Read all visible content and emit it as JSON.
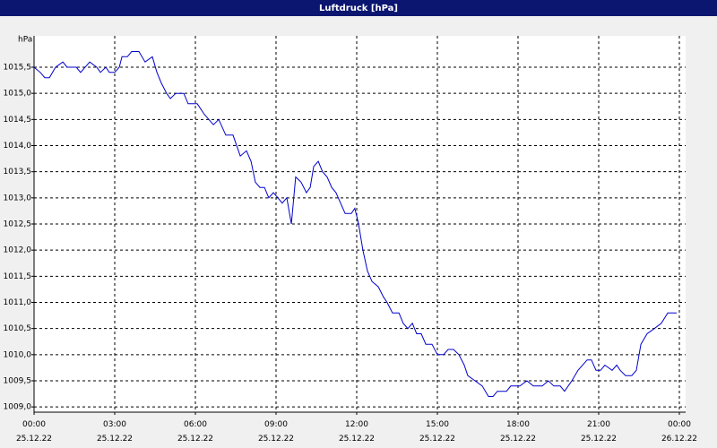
{
  "chart_data": {
    "type": "line",
    "title": "Luftdruck [hPa]",
    "y_label": "hPa",
    "xlim": [
      0,
      24
    ],
    "ylim": [
      1008.9,
      1016.1
    ],
    "grid": true,
    "xticks": [
      {
        "value": 0,
        "label": "00:00 25.12.22"
      },
      {
        "value": 3,
        "label": "03:00 25.12.22"
      },
      {
        "value": 6,
        "label": "06:00 25.12.22"
      },
      {
        "value": 9,
        "label": "09:00 25.12.22"
      },
      {
        "value": 12,
        "label": "12:00 25.12.22"
      },
      {
        "value": 15,
        "label": "15:00 25.12.22"
      },
      {
        "value": 18,
        "label": "18:00 25.12.22"
      },
      {
        "value": 21,
        "label": "21:00 25.12.22"
      },
      {
        "value": 24,
        "label": "00:00 26.12.22"
      }
    ],
    "yticks": [
      {
        "value": 1009.0,
        "label": "1009,0"
      },
      {
        "value": 1009.5,
        "label": "1009,5"
      },
      {
        "value": 1010.0,
        "label": "1010,0"
      },
      {
        "value": 1010.5,
        "label": "1010,5"
      },
      {
        "value": 1011.0,
        "label": "1011,0"
      },
      {
        "value": 1011.5,
        "label": "1011,5"
      },
      {
        "value": 1012.0,
        "label": "1012,0"
      },
      {
        "value": 1012.5,
        "label": "1012,5"
      },
      {
        "value": 1013.0,
        "label": "1013,0"
      },
      {
        "value": 1013.5,
        "label": "1013,5"
      },
      {
        "value": 1014.0,
        "label": "1014,0"
      },
      {
        "value": 1014.5,
        "label": "1014,5"
      },
      {
        "value": 1015.0,
        "label": "1015,0"
      },
      {
        "value": 1015.5,
        "label": "1015,5"
      }
    ],
    "series": [
      {
        "name": "Luftdruck",
        "color": "#0000cc",
        "x": [
          0,
          0.23,
          0.4,
          0.57,
          0.8,
          1.07,
          1.23,
          1.57,
          1.73,
          2.07,
          2.33,
          2.47,
          2.67,
          2.8,
          3,
          3.17,
          3.27,
          3.47,
          3.63,
          3.9,
          4.13,
          4.4,
          4.57,
          4.73,
          4.93,
          5.07,
          5.27,
          5.57,
          5.73,
          6.07,
          6.33,
          6.67,
          6.87,
          7.13,
          7.4,
          7.67,
          7.9,
          8.07,
          8.23,
          8.4,
          8.57,
          8.73,
          8.9,
          9.07,
          9.23,
          9.4,
          9.57,
          9.73,
          9.93,
          10.13,
          10.27,
          10.4,
          10.57,
          10.73,
          10.9,
          11.07,
          11.23,
          11.4,
          11.57,
          11.8,
          11.93,
          12.07,
          12.23,
          12.4,
          12.57,
          12.8,
          13,
          13.13,
          13.33,
          13.57,
          13.73,
          13.9,
          14.07,
          14.23,
          14.4,
          14.57,
          14.8,
          15,
          15.23,
          15.4,
          15.6,
          15.8,
          16,
          16.13,
          16.4,
          16.67,
          16.9,
          17.07,
          17.23,
          17.57,
          17.73,
          18.07,
          18.33,
          18.57,
          18.9,
          19.13,
          19.33,
          19.57,
          19.73,
          20,
          20.23,
          20.57,
          20.73,
          20.9,
          21.07,
          21.23,
          21.5,
          21.67,
          21.8,
          22,
          22.23,
          22.4,
          22.57,
          22.8,
          23.07,
          23.33,
          23.57,
          23.9
        ],
        "values": [
          1015.5,
          1015.4,
          1015.3,
          1015.3,
          1015.5,
          1015.6,
          1015.5,
          1015.5,
          1015.4,
          1015.6,
          1015.5,
          1015.4,
          1015.5,
          1015.4,
          1015.4,
          1015.5,
          1015.7,
          1015.7,
          1015.8,
          1015.8,
          1015.6,
          1015.7,
          1015.4,
          1015.2,
          1015.0,
          1014.9,
          1015.0,
          1015.0,
          1014.8,
          1014.8,
          1014.6,
          1014.4,
          1014.5,
          1014.2,
          1014.2,
          1013.8,
          1013.9,
          1013.7,
          1013.3,
          1013.2,
          1013.2,
          1013.0,
          1013.1,
          1013.0,
          1012.9,
          1013.0,
          1012.5,
          1013.4,
          1013.3,
          1013.1,
          1013.2,
          1013.6,
          1013.7,
          1013.5,
          1013.4,
          1013.2,
          1013.1,
          1012.9,
          1012.7,
          1012.7,
          1012.8,
          1012.5,
          1012.0,
          1011.6,
          1011.4,
          1011.3,
          1011.1,
          1011.0,
          1010.8,
          1010.8,
          1010.6,
          1010.5,
          1010.6,
          1010.4,
          1010.4,
          1010.2,
          1010.2,
          1010.0,
          1010.0,
          1010.1,
          1010.1,
          1010.0,
          1009.8,
          1009.6,
          1009.5,
          1009.4,
          1009.2,
          1009.2,
          1009.3,
          1009.3,
          1009.4,
          1009.4,
          1009.5,
          1009.4,
          1009.4,
          1009.5,
          1009.4,
          1009.4,
          1009.3,
          1009.5,
          1009.7,
          1009.9,
          1009.9,
          1009.7,
          1009.7,
          1009.8,
          1009.7,
          1009.8,
          1009.7,
          1009.6,
          1009.6,
          1009.7,
          1010.2,
          1010.4,
          1010.5,
          1010.6,
          1010.8,
          1010.8
        ]
      }
    ]
  }
}
